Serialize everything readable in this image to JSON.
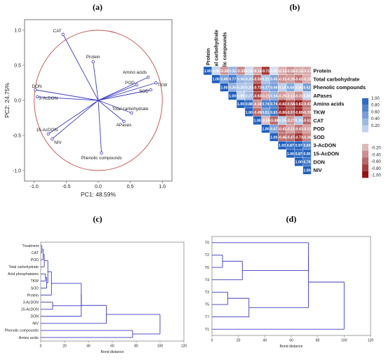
{
  "panels": {
    "a": "(a)",
    "b": "(b)",
    "c": "(c)",
    "d": "(d)"
  },
  "chart_data": [
    {
      "id": "a",
      "type": "scatter",
      "subtype": "pca-loading-biplot",
      "xlabel": "PC1: 48.59%",
      "ylabel": "PC2: 24.75%",
      "xlim": [
        -1.15,
        1.15
      ],
      "ylim": [
        -1.15,
        1.15
      ],
      "xticks": [
        "-1.0",
        "-0.5",
        "0.0",
        "0.5",
        "1.0"
      ],
      "yticks": [
        "-1.0",
        "-0.5",
        "0.0",
        "0.5",
        "1.0"
      ],
      "xtick_values": [
        -1.0,
        -0.5,
        0.0,
        0.5,
        1.0
      ],
      "ytick_values": [
        -1.0,
        -0.5,
        0.0,
        0.5,
        1.0
      ],
      "circle_radius": 1.0,
      "circle_color": "#c0504d",
      "vector_color": "#3b3bc4",
      "grid": false,
      "points": [
        {
          "name": "CAT",
          "x": -0.55,
          "y": 0.94
        },
        {
          "name": "Protein",
          "x": -0.08,
          "y": 0.55
        },
        {
          "name": "Amino acids",
          "x": 0.78,
          "y": 0.33
        },
        {
          "name": "TKW",
          "x": 0.9,
          "y": 0.25
        },
        {
          "name": "POD",
          "x": 0.6,
          "y": 0.22
        },
        {
          "name": "SOD",
          "x": 0.82,
          "y": 0.15
        },
        {
          "name": "Total carbohydrate",
          "x": 0.52,
          "y": -0.18
        },
        {
          "name": "APases",
          "x": 0.4,
          "y": -0.3
        },
        {
          "name": "Phenolic compounds",
          "x": 0.05,
          "y": -0.75
        },
        {
          "name": "DON",
          "x": -0.98,
          "y": 0.15
        },
        {
          "name": "3-AcDON",
          "x": -0.95,
          "y": 0.05
        },
        {
          "name": "15-AcDON",
          "x": -0.78,
          "y": -0.48
        },
        {
          "name": "NIV",
          "x": -0.72,
          "y": -0.55
        }
      ]
    },
    {
      "id": "b",
      "type": "heatmap",
      "subtype": "correlation-upper-triangle",
      "labels": [
        "Protein",
        "Total carbohydrate",
        "Phenolic compounds",
        "APases",
        "Amino acids",
        "TKW",
        "CAT",
        "POD",
        "SOD",
        "3-AcDON",
        "15-AcDON",
        "DON",
        "NIV"
      ],
      "matrix": [
        [
          "1.00",
          "0.06",
          "-0.26",
          "0.32",
          "-0.33",
          "0.03",
          "-0.18",
          "-0.71",
          "0.00",
          "-0.13",
          "-0.26",
          "-0.15",
          "-0.17"
        ],
        [
          "",
          "1.00",
          "0.49",
          "0.77",
          "0.36",
          "0.30",
          "-0.50",
          "0.21",
          "0.45",
          "-0.31",
          "-0.26",
          "-0.42",
          "-0.15"
        ],
        [
          "",
          "",
          "1.00",
          "0.36",
          "0.20",
          "0.20",
          "-0.73",
          "0.37",
          "0.49",
          "0.14",
          "0.44",
          "0.06",
          "0.52"
        ],
        [
          "",
          "",
          "",
          "1.00",
          "0.09",
          "0.27",
          "-0.63",
          "-0.21",
          "0.34",
          "-0.25",
          "-0.12",
          "-0.31",
          "0.06"
        ],
        [
          "",
          "",
          "",
          "",
          "1.00",
          "0.88",
          "-0.30",
          "0.74",
          "0.74",
          "-0.82",
          "-0.58",
          "-0.82",
          "-0.43"
        ],
        [
          "",
          "",
          "",
          "",
          "",
          "1.00",
          "-0.49",
          "0.51",
          "0.83",
          "-0.80",
          "-0.57",
          "-0.80",
          "-0.35"
        ],
        [
          "",
          "",
          "",
          "",
          "",
          "",
          "1.00",
          "-0.08",
          "-0.48",
          "0.15",
          "-0.27",
          "0.19",
          "-0.51"
        ],
        [
          "",
          "",
          "",
          "",
          "",
          "",
          "",
          "1.00",
          "0.47",
          "-0.41",
          "-0.21",
          "-0.41",
          "-0.21"
        ],
        [
          "",
          "",
          "",
          "",
          "",
          "",
          "",
          "",
          "1.00",
          "-0.46",
          "-0.47",
          "-0.73",
          "-0.36"
        ],
        [
          "",
          "",
          "",
          "",
          "",
          "",
          "",
          "",
          "",
          "1.00",
          "0.87",
          "0.97",
          "0.69"
        ],
        [
          "",
          "",
          "",
          "",
          "",
          "",
          "",
          "",
          "",
          "",
          "1.00",
          "0.87",
          "0.95"
        ],
        [
          "",
          "",
          "",
          "",
          "",
          "",
          "",
          "",
          "",
          "",
          "",
          "1.00",
          "0.78"
        ],
        [
          "",
          "",
          "",
          "",
          "",
          "",
          "",
          "",
          "",
          "",
          "",
          "",
          "1.00"
        ]
      ],
      "colorbar_positive": [
        "1.00",
        "0.80",
        "0.60",
        "0.40",
        "0.20"
      ],
      "colorbar_negative": [
        "-0.20",
        "-0.40",
        "-0.60",
        "-0.80",
        "-1.00"
      ],
      "colorbar_positive_values": [
        1.0,
        0.8,
        0.6,
        0.4,
        0.2
      ],
      "colorbar_negative_values": [
        -0.2,
        -0.4,
        -0.6,
        -0.8,
        -1.0
      ],
      "positive_color": "#1f5fbf",
      "negative_color": "#8b0000"
    },
    {
      "id": "c",
      "type": "dendrogram",
      "orientation": "horizontal",
      "xlabel": "Bond distance",
      "xlim": [
        0,
        120
      ],
      "xticks": [
        "0",
        "20",
        "40",
        "60",
        "80",
        "100",
        "120"
      ],
      "xtick_values": [
        0,
        20,
        40,
        60,
        80,
        100,
        120
      ],
      "line_color": "#3b3bc4",
      "leaves": [
        "Treatment",
        "CAT",
        "POD",
        "Total carbohydrate",
        "Acid phosphatases",
        "TKW",
        "SOD",
        "Protein",
        "3-AcDON",
        "15-AcDON",
        "DON",
        "NIV",
        "Phenolic compounds",
        "Amino acids"
      ],
      "merges": [
        {
          "a": 0,
          "b": 1,
          "h": 1
        },
        {
          "a": 14,
          "b": 2,
          "h": 2
        },
        {
          "a": 15,
          "b": 3,
          "h": 3
        },
        {
          "a": 4,
          "b": 5,
          "h": 4
        },
        {
          "a": 17,
          "b": 6,
          "h": 5
        },
        {
          "a": 16,
          "b": 18,
          "h": 6
        },
        {
          "a": 19,
          "b": 7,
          "h": 9
        },
        {
          "a": 8,
          "b": 9,
          "h": 10
        },
        {
          "a": 20,
          "b": 21,
          "h": 34
        },
        {
          "a": 22,
          "b": 10,
          "h": 34
        },
        {
          "a": 23,
          "b": 11,
          "h": 55
        },
        {
          "a": 12,
          "b": 13,
          "h": 77
        },
        {
          "a": 24,
          "b": 25,
          "h": 100
        }
      ]
    },
    {
      "id": "d",
      "type": "dendrogram",
      "orientation": "horizontal",
      "xlabel": "Bond distance",
      "xlim": [
        0,
        120
      ],
      "xticks": [
        "0",
        "20",
        "40",
        "60",
        "80",
        "100",
        "120"
      ],
      "xtick_values": [
        0,
        20,
        40,
        60,
        80,
        100,
        120
      ],
      "line_color": "#3b3bc4",
      "leaves": [
        "T0",
        "T2",
        "T6",
        "T4",
        "T3",
        "T5",
        "T7",
        "T1"
      ],
      "merges": [
        {
          "a": 1,
          "b": 2,
          "h": 8
        },
        {
          "a": 8,
          "b": 3,
          "h": 23
        },
        {
          "a": 4,
          "b": 5,
          "h": 12
        },
        {
          "a": 10,
          "b": 6,
          "h": 28
        },
        {
          "a": 0,
          "b": 9,
          "h": 73
        },
        {
          "a": 12,
          "b": 11,
          "h": 73
        },
        {
          "a": 13,
          "b": 7,
          "h": 100
        }
      ]
    }
  ]
}
